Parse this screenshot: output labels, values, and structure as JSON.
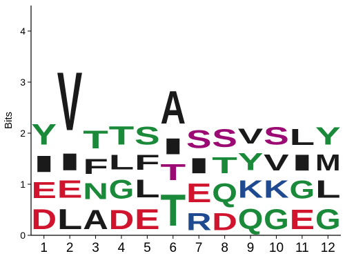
{
  "chart_data": {
    "type": "sequence-logo",
    "ylabel": "Bits",
    "xlabel": "",
    "ylim": [
      0,
      4.5
    ],
    "yticks": [
      0,
      1,
      2,
      3,
      4
    ],
    "positions": [
      "1",
      "2",
      "3",
      "4",
      "5",
      "6",
      "7",
      "8",
      "9",
      "10",
      "11",
      "12"
    ],
    "colors": {
      "green": "#1a8a3a",
      "red": "#d0142d",
      "black": "#1a1a1a",
      "purple": "#9b0a72",
      "blue": "#1f4a8f"
    },
    "stacks": [
      [
        {
          "letter": "D",
          "height": 0.63,
          "color": "red"
        },
        {
          "letter": "E",
          "height": 0.51,
          "color": "red"
        },
        {
          "letter": "I",
          "height": 0.51,
          "color": "black"
        },
        {
          "letter": "Y",
          "height": 0.65,
          "color": "green"
        }
      ],
      [
        {
          "letter": "L",
          "height": 0.63,
          "color": "black"
        },
        {
          "letter": "E",
          "height": 0.54,
          "color": "red"
        },
        {
          "letter": "I",
          "height": 0.53,
          "color": "black"
        },
        {
          "letter": "V",
          "height": 1.82,
          "color": "black"
        }
      ],
      [
        {
          "letter": "A",
          "height": 0.61,
          "color": "black"
        },
        {
          "letter": "N",
          "height": 0.5,
          "color": "green"
        },
        {
          "letter": "F",
          "height": 0.48,
          "color": "black"
        },
        {
          "letter": "T",
          "height": 0.56,
          "color": "green"
        }
      ],
      [
        {
          "letter": "D",
          "height": 0.61,
          "color": "red"
        },
        {
          "letter": "G",
          "height": 0.59,
          "color": "green"
        },
        {
          "letter": "L",
          "height": 0.46,
          "color": "black"
        },
        {
          "letter": "T",
          "height": 0.58,
          "color": "green"
        }
      ],
      [
        {
          "letter": "E",
          "height": 0.63,
          "color": "red"
        },
        {
          "letter": "L",
          "height": 0.56,
          "color": "black"
        },
        {
          "letter": "F",
          "height": 0.48,
          "color": "black"
        },
        {
          "letter": "S",
          "height": 0.56,
          "color": "green"
        }
      ],
      [
        {
          "letter": "T",
          "height": 0.98,
          "color": "green"
        },
        {
          "letter": "T",
          "height": 0.51,
          "color": "purple"
        },
        {
          "letter": "I",
          "height": 0.5,
          "color": "black"
        },
        {
          "letter": "A",
          "height": 1.02,
          "color": "black"
        }
      ],
      [
        {
          "letter": "R",
          "height": 0.53,
          "color": "blue"
        },
        {
          "letter": "E",
          "height": 0.59,
          "color": "red"
        },
        {
          "letter": "I",
          "height": 0.48,
          "color": "black"
        },
        {
          "letter": "S",
          "height": 0.56,
          "color": "purple"
        }
      ],
      [
        {
          "letter": "D",
          "height": 0.53,
          "color": "red"
        },
        {
          "letter": "Q",
          "height": 0.59,
          "color": "green"
        },
        {
          "letter": "T",
          "height": 0.5,
          "color": "green"
        },
        {
          "letter": "S",
          "height": 0.56,
          "color": "purple"
        }
      ],
      [
        {
          "letter": "Q",
          "height": 0.63,
          "color": "green"
        },
        {
          "letter": "K",
          "height": 0.54,
          "color": "blue"
        },
        {
          "letter": "Y",
          "height": 0.53,
          "color": "green"
        },
        {
          "letter": "V",
          "height": 0.48,
          "color": "black"
        }
      ],
      [
        {
          "letter": "G",
          "height": 0.63,
          "color": "green"
        },
        {
          "letter": "K",
          "height": 0.54,
          "color": "blue"
        },
        {
          "letter": "V",
          "height": 0.5,
          "color": "black"
        },
        {
          "letter": "S",
          "height": 0.54,
          "color": "purple"
        }
      ],
      [
        {
          "letter": "E",
          "height": 0.61,
          "color": "red"
        },
        {
          "letter": "G",
          "height": 0.56,
          "color": "green"
        },
        {
          "letter": "I",
          "height": 0.5,
          "color": "black"
        },
        {
          "letter": "L",
          "height": 0.51,
          "color": "black"
        }
      ],
      [
        {
          "letter": "G",
          "height": 0.63,
          "color": "green"
        },
        {
          "letter": "L",
          "height": 0.54,
          "color": "black"
        },
        {
          "letter": "M",
          "height": 0.5,
          "color": "black"
        },
        {
          "letter": "Y",
          "height": 0.54,
          "color": "green"
        }
      ]
    ]
  }
}
